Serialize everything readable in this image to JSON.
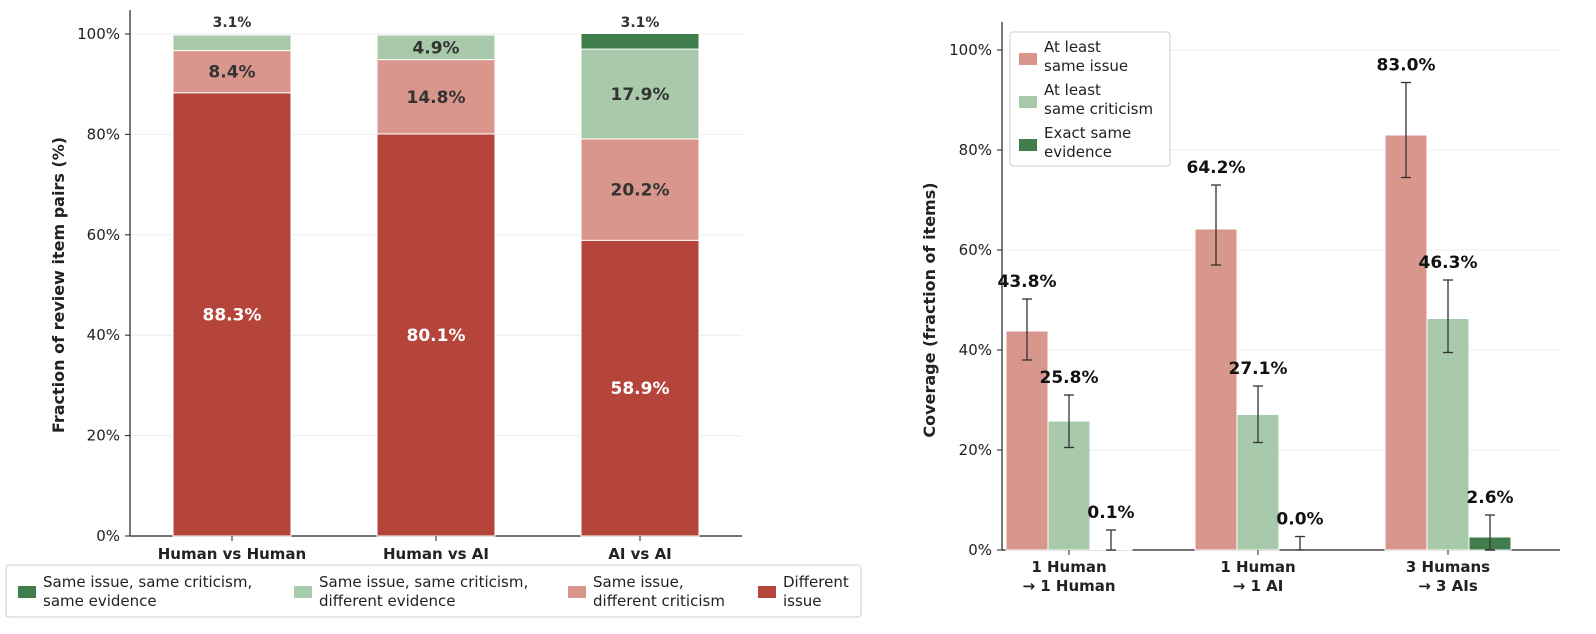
{
  "chart_data": [
    {
      "type": "bar",
      "stacked": true,
      "ylabel": "Fraction of review item pairs (%)",
      "ylim": [
        0,
        100
      ],
      "yticks": [
        "0%",
        "20%",
        "40%",
        "60%",
        "80%",
        "100%"
      ],
      "grid": true,
      "legend_position": "bottom",
      "categories": [
        "Human vs Human",
        "Human vs AI",
        "AI vs AI"
      ],
      "series": [
        {
          "name": "Different issue",
          "legend_lines": [
            "Different",
            "issue"
          ],
          "color": "#b5443b",
          "label_color": "#ffffff",
          "values": [
            88.3,
            80.1,
            58.9
          ],
          "labels": [
            "88.3%",
            "80.1%",
            "58.9%"
          ]
        },
        {
          "name": "Same issue, different criticism",
          "legend_lines": [
            "Same issue,",
            "different criticism"
          ],
          "color": "#d9968c",
          "label_color": "#333333",
          "values": [
            8.4,
            14.8,
            20.2
          ],
          "labels": [
            "8.4%",
            "14.8%",
            "20.2%"
          ]
        },
        {
          "name": "Same issue, same criticism, different evidence",
          "legend_lines": [
            "Same issue, same criticism,",
            "different evidence"
          ],
          "color": "#a9c9ab",
          "label_color": "#333333",
          "values": [
            3.1,
            4.9,
            17.9
          ],
          "labels": [
            "3.1%",
            "4.9%",
            "17.9%"
          ]
        },
        {
          "name": "Same issue, same criticism, same evidence",
          "legend_lines": [
            "Same issue, same criticism,",
            "same evidence"
          ],
          "color": "#3f7d4c",
          "label_color": "#333333",
          "values": [
            0.0,
            0.0,
            3.1
          ],
          "labels": [
            "",
            "",
            "3.1%"
          ]
        }
      ]
    },
    {
      "type": "bar",
      "ylabel": "Coverage (fraction of items)",
      "ylim": [
        0,
        100
      ],
      "yticks": [
        "0%",
        "20%",
        "40%",
        "60%",
        "80%",
        "100%"
      ],
      "grid": true,
      "legend_position": "top-left",
      "categories": [
        {
          "lines": [
            "1 Human",
            "→ 1 Human"
          ]
        },
        {
          "lines": [
            "1 Human",
            "→ 1 AI"
          ]
        },
        {
          "lines": [
            "3 Humans",
            "→ 3 AIs"
          ]
        }
      ],
      "series": [
        {
          "name": "At least same issue",
          "legend_lines": [
            "At least",
            "same issue"
          ],
          "color": "#d9968c",
          "values": [
            43.8,
            64.2,
            83.0
          ],
          "labels": [
            "43.8%",
            "64.2%",
            "83.0%"
          ],
          "error_low": [
            38.0,
            57.0,
            74.5
          ],
          "error_high": [
            50.2,
            73.0,
            93.5
          ]
        },
        {
          "name": "At least same criticism",
          "legend_lines": [
            "At least",
            "same criticism"
          ],
          "color": "#a9c9ab",
          "values": [
            25.8,
            27.1,
            46.3
          ],
          "labels": [
            "25.8%",
            "27.1%",
            "46.3%"
          ],
          "error_low": [
            20.5,
            21.5,
            39.5
          ],
          "error_high": [
            31.0,
            32.8,
            54.0
          ]
        },
        {
          "name": "Exact same evidence",
          "legend_lines": [
            "Exact same",
            "evidence"
          ],
          "color": "#3f7d4c",
          "values": [
            0.1,
            0.0,
            2.6
          ],
          "labels": [
            "0.1%",
            "0.0%",
            "2.6%"
          ],
          "error_low": [
            0.0,
            0.0,
            0.0
          ],
          "error_high": [
            4.0,
            2.7,
            7.0
          ]
        }
      ]
    }
  ]
}
